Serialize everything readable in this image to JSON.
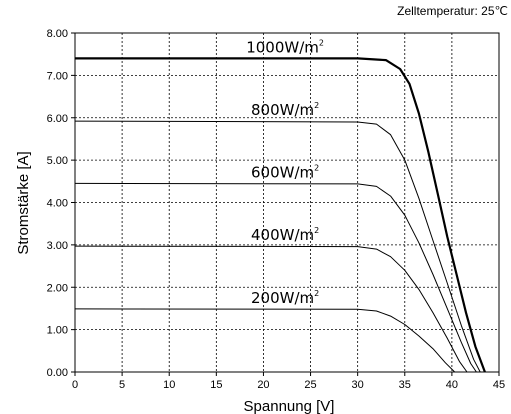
{
  "chart_data": {
    "type": "line",
    "annotation": "Zelltemperatur: 25℃",
    "xlabel": "Spannung [V]",
    "ylabel": "Stromstärke [A]",
    "xlim": [
      0,
      45
    ],
    "ylim": [
      0,
      8
    ],
    "x_ticks": [
      0,
      5,
      10,
      15,
      20,
      25,
      30,
      35,
      40,
      45
    ],
    "x_tick_labels": [
      "0",
      "5",
      "10",
      "15",
      "20",
      "25",
      "30",
      "35",
      "40",
      "45"
    ],
    "y_ticks": [
      0,
      1,
      2,
      3,
      4,
      5,
      6,
      7,
      8
    ],
    "y_tick_labels": [
      "0.00",
      "1.00",
      "2.00",
      "3.00",
      "4.00",
      "5.00",
      "6.00",
      "7.00",
      "8.00"
    ],
    "grid": true,
    "grid_style": "dotted",
    "series": [
      {
        "label_main": "1000W/m",
        "label_sup": "2",
        "stroke_width": 2.2,
        "points": [
          [
            0,
            7.4
          ],
          [
            30,
            7.4
          ],
          [
            33,
            7.36
          ],
          [
            34.5,
            7.15
          ],
          [
            35.5,
            6.8
          ],
          [
            36.5,
            6.1
          ],
          [
            37.5,
            5.2
          ],
          [
            38.5,
            4.2
          ],
          [
            39.5,
            3.2
          ],
          [
            40.5,
            2.3
          ],
          [
            41.5,
            1.4
          ],
          [
            42.5,
            0.6
          ],
          [
            43.5,
            0
          ]
        ]
      },
      {
        "label_main": "800W/m",
        "label_sup": "2",
        "stroke_width": 1,
        "points": [
          [
            0,
            5.92
          ],
          [
            30,
            5.9
          ],
          [
            32,
            5.85
          ],
          [
            33.5,
            5.6
          ],
          [
            35,
            5.0
          ],
          [
            36.5,
            4.1
          ],
          [
            38,
            3.1
          ],
          [
            39.5,
            2.1
          ],
          [
            41,
            1.1
          ],
          [
            42.3,
            0.3
          ],
          [
            43,
            0
          ]
        ]
      },
      {
        "label_main": "600W/m",
        "label_sup": "2",
        "stroke_width": 1,
        "points": [
          [
            0,
            4.45
          ],
          [
            30,
            4.44
          ],
          [
            32,
            4.38
          ],
          [
            33.5,
            4.15
          ],
          [
            35,
            3.7
          ],
          [
            36.5,
            3.05
          ],
          [
            38,
            2.3
          ],
          [
            39.5,
            1.5
          ],
          [
            41,
            0.7
          ],
          [
            42,
            0.2
          ],
          [
            42.6,
            0
          ]
        ]
      },
      {
        "label_main": "400W/m",
        "label_sup": "2",
        "stroke_width": 1,
        "points": [
          [
            0,
            2.97
          ],
          [
            30,
            2.96
          ],
          [
            32,
            2.9
          ],
          [
            33.5,
            2.72
          ],
          [
            35,
            2.4
          ],
          [
            36.5,
            1.95
          ],
          [
            38,
            1.4
          ],
          [
            39.5,
            0.8
          ],
          [
            40.8,
            0.25
          ],
          [
            41.6,
            0
          ]
        ]
      },
      {
        "label_main": "200W/m",
        "label_sup": "2",
        "stroke_width": 1,
        "points": [
          [
            0,
            1.49
          ],
          [
            30,
            1.48
          ],
          [
            32,
            1.44
          ],
          [
            33.5,
            1.32
          ],
          [
            35,
            1.12
          ],
          [
            36.5,
            0.85
          ],
          [
            38,
            0.55
          ],
          [
            39.3,
            0.22
          ],
          [
            40.3,
            0
          ]
        ]
      }
    ]
  }
}
